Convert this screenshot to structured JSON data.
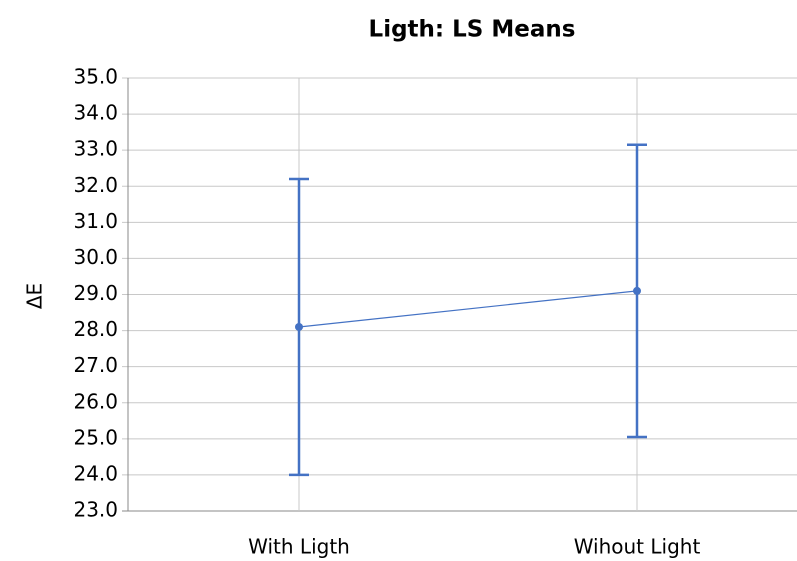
{
  "chart_data": {
    "type": "line",
    "title": "Ligth: LS Means",
    "y_label": "ΔE",
    "categories": [
      "With Ligth",
      "Wihout Light"
    ],
    "values": [
      28.1,
      29.1
    ],
    "errors": [
      4.1,
      4.05
    ],
    "color": "#4472c4",
    "ylim": [
      23,
      35
    ],
    "yticks": [
      {
        "value": 23,
        "label": "23.0"
      },
      {
        "value": 24,
        "label": "24.0"
      },
      {
        "value": 25,
        "label": "25.0"
      },
      {
        "value": 26,
        "label": "26.0"
      },
      {
        "value": 27,
        "label": "27.0"
      },
      {
        "value": 28,
        "label": "28.0"
      },
      {
        "value": 29,
        "label": "29.0"
      },
      {
        "value": 30,
        "label": "30.0"
      },
      {
        "value": 31,
        "label": "31.0"
      },
      {
        "value": 32,
        "label": "32.0"
      },
      {
        "value": 33,
        "label": "33.0"
      },
      {
        "value": 34,
        "label": "34.0"
      },
      {
        "value": 35,
        "label": "35.0"
      }
    ],
    "grid": true
  }
}
